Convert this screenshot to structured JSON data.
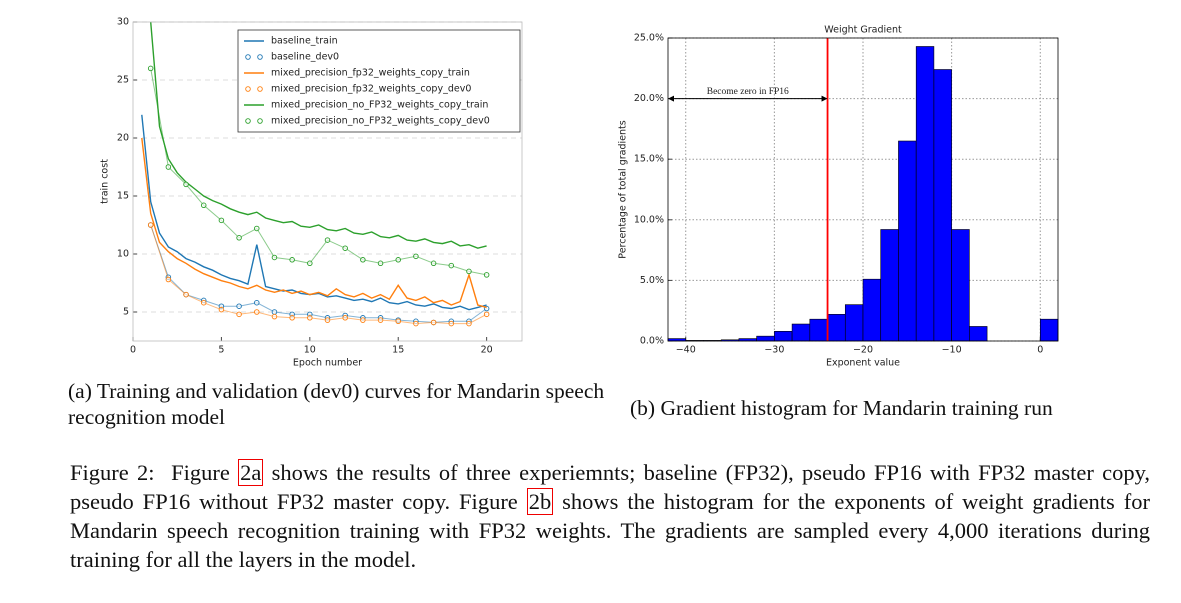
{
  "chart_data": [
    {
      "type": "line",
      "xlabel": "Epoch number",
      "ylabel": "train cost",
      "xlim": [
        0,
        22
      ],
      "ylim": [
        2.5,
        30
      ],
      "xticks": [
        0,
        5,
        10,
        15,
        20
      ],
      "yticks": [
        5,
        10,
        15,
        20,
        25,
        30
      ],
      "grid": "y",
      "grid_style": "dashed",
      "legend": "upper right",
      "series": [
        {
          "name": "baseline_train",
          "color": "#1f77b4",
          "x": [
            0.5,
            1,
            1.5,
            2,
            2.5,
            3,
            3.5,
            4,
            4.5,
            5,
            5.5,
            6,
            6.5,
            7,
            7.5,
            8,
            8.5,
            9,
            9.5,
            10,
            10.5,
            11,
            11.5,
            12,
            12.5,
            13,
            13.5,
            14,
            14.5,
            15,
            15.5,
            16,
            16.5,
            17,
            17.5,
            18,
            18.5,
            19,
            19.5,
            20
          ],
          "values": [
            22,
            14.5,
            11.8,
            10.6,
            10.2,
            9.6,
            9.3,
            8.9,
            8.6,
            8.2,
            7.9,
            7.7,
            7.4,
            10.8,
            7.2,
            7.0,
            6.8,
            6.9,
            6.6,
            6.5,
            6.6,
            6.3,
            6.4,
            6.2,
            6.0,
            6.1,
            5.9,
            6.2,
            5.8,
            5.7,
            5.9,
            5.6,
            5.5,
            5.7,
            5.4,
            5.3,
            5.5,
            5.2,
            5.4,
            5.6
          ]
        },
        {
          "name": "baseline_dev0",
          "color": "#1f77b4",
          "marker": "o",
          "alpha": 0.55,
          "x": [
            1,
            2,
            3,
            4,
            5,
            6,
            7,
            8,
            9,
            10,
            11,
            12,
            13,
            14,
            15,
            16,
            17,
            18,
            19,
            20
          ],
          "values": [
            12.5,
            8,
            6.5,
            6,
            5.5,
            5.5,
            5.8,
            5,
            4.8,
            4.8,
            4.5,
            4.7,
            4.5,
            4.5,
            4.3,
            4.2,
            4.1,
            4.2,
            4.2,
            5.3
          ]
        },
        {
          "name": "mixed_precision_fp32_weights_copy_train",
          "color": "#ff7f0e",
          "x": [
            0.5,
            1,
            1.5,
            2,
            2.5,
            3,
            3.5,
            4,
            4.5,
            5,
            5.5,
            6,
            6.5,
            7,
            7.5,
            8,
            8.5,
            9,
            9.5,
            10,
            10.5,
            11,
            11.5,
            12,
            12.5,
            13,
            13.5,
            14,
            14.5,
            15,
            15.5,
            16,
            16.5,
            17,
            17.5,
            18,
            18.5,
            19,
            19.5,
            20
          ],
          "values": [
            20,
            13.5,
            11,
            10.2,
            9.6,
            9.2,
            8.7,
            8.3,
            8.0,
            7.7,
            7.5,
            7.2,
            7.0,
            7.3,
            6.9,
            6.7,
            6.9,
            6.6,
            6.8,
            6.5,
            6.7,
            6.4,
            7.0,
            6.5,
            6.3,
            6.6,
            6.2,
            6.5,
            6.1,
            7.3,
            6.2,
            6.0,
            6.3,
            5.8,
            6.0,
            5.6,
            5.9,
            8.2,
            5.6,
            5.4
          ]
        },
        {
          "name": "mixed_precision_fp32_weights_copy_dev0",
          "color": "#ff7f0e",
          "marker": "o",
          "alpha": 0.55,
          "x": [
            1,
            2,
            3,
            4,
            5,
            6,
            7,
            8,
            9,
            10,
            11,
            12,
            13,
            14,
            15,
            16,
            17,
            18,
            19,
            20
          ],
          "values": [
            12.5,
            7.8,
            6.5,
            5.8,
            5.2,
            4.8,
            5,
            4.6,
            4.5,
            4.5,
            4.3,
            4.5,
            4.3,
            4.3,
            4.2,
            4,
            4.1,
            4,
            4,
            4.8
          ]
        },
        {
          "name": "mixed_precision_no_FP32_weights_copy_train",
          "color": "#2ca02c",
          "x": [
            1,
            1.5,
            2,
            2.5,
            3,
            3.5,
            4,
            4.5,
            5,
            5.5,
            6,
            6.5,
            7,
            7.5,
            8,
            8.5,
            9,
            9.5,
            10,
            10.5,
            11,
            11.5,
            12,
            12.5,
            13,
            13.5,
            14,
            14.5,
            15,
            15.5,
            16,
            16.5,
            17,
            17.5,
            18,
            18.5,
            19,
            19.5,
            20
          ],
          "values": [
            30,
            21,
            18.2,
            17,
            16.2,
            15.6,
            15,
            14.6,
            14.3,
            13.9,
            13.6,
            13.4,
            13.6,
            13.1,
            12.9,
            12.7,
            12.8,
            12.4,
            12.3,
            12.5,
            12.1,
            12.0,
            12.2,
            11.8,
            11.7,
            11.9,
            11.5,
            11.4,
            11.6,
            11.2,
            11.1,
            11.3,
            11.0,
            10.9,
            11.1,
            10.7,
            10.8,
            10.5,
            10.7
          ]
        },
        {
          "name": "mixed_precision_no_FP32_weights_copy_dev0",
          "color": "#2ca02c",
          "marker": "o",
          "alpha": 0.55,
          "x": [
            1,
            2,
            3,
            4,
            5,
            6,
            7,
            8,
            9,
            10,
            11,
            12,
            13,
            14,
            15,
            16,
            17,
            18,
            19,
            20
          ],
          "values": [
            26,
            17.5,
            16,
            14.2,
            12.9,
            11.4,
            12.2,
            9.7,
            9.5,
            9.2,
            11.2,
            10.5,
            9.5,
            9.2,
            9.5,
            9.8,
            9.2,
            9,
            8.5,
            8.2
          ]
        }
      ]
    },
    {
      "type": "histogram",
      "title": "Weight Gradient",
      "xlabel": "Exponent value",
      "ylabel": "Percentage of total gradients",
      "xlim": [
        -42,
        2
      ],
      "ylim": [
        0,
        25
      ],
      "xticks": [
        {
          "value": -40,
          "label": "−40"
        },
        {
          "value": -30,
          "label": "−30"
        },
        {
          "value": -20,
          "label": "−20"
        },
        {
          "value": -10,
          "label": "−10"
        },
        0
      ],
      "yticks": [
        {
          "value": 0,
          "label": "0.0%"
        },
        {
          "value": 5,
          "label": "5.0%"
        },
        {
          "value": 10,
          "label": "10.0%"
        },
        {
          "value": 15,
          "label": "15.0%"
        },
        {
          "value": 20,
          "label": "20.0%"
        },
        {
          "value": 25,
          "label": "25.0%"
        }
      ],
      "grid": "both",
      "grid_style": "dotted",
      "color": "#0000ff",
      "bins": [
        -42,
        -40,
        -38,
        -36,
        -34,
        -32,
        -30,
        -28,
        -26,
        -24,
        -22,
        -20,
        -18,
        -16,
        -14,
        -12,
        -10,
        -8,
        -6,
        -4,
        -2,
        0,
        2
      ],
      "values": [
        0.2,
        0.05,
        0.05,
        0.1,
        0.2,
        0.4,
        0.8,
        1.4,
        1.8,
        2.2,
        3.0,
        5.1,
        9.2,
        16.5,
        24.3,
        22.4,
        9.2,
        1.2,
        0,
        0,
        0,
        1.8
      ],
      "vline": {
        "x": -24,
        "color": "#ff0000"
      },
      "annotation": {
        "text": "Become zero in FP16",
        "x_from": -42,
        "x_to": -24,
        "y": 20
      }
    }
  ],
  "captions": [
    "(a) Training and validation (dev0) curves for Mandarin speech recognition model",
    "(b) Gradient histogram for Mandarin training run"
  ],
  "figure_caption": {
    "label": "Figure 2:",
    "text_1": "Figure",
    "ref_a": "2a",
    "text_2": "shows the results of three experiemnts; baseline (FP32), pseudo FP16 with FP32 master copy, pseudo FP16 without FP32 master copy. Figure",
    "ref_b": "2b",
    "text_3": "shows the histogram for the exponents of weight gradients for Mandarin speech recognition training with FP32 weights. The gradients are sampled every 4,000 iterations during training for all the layers in the model."
  }
}
